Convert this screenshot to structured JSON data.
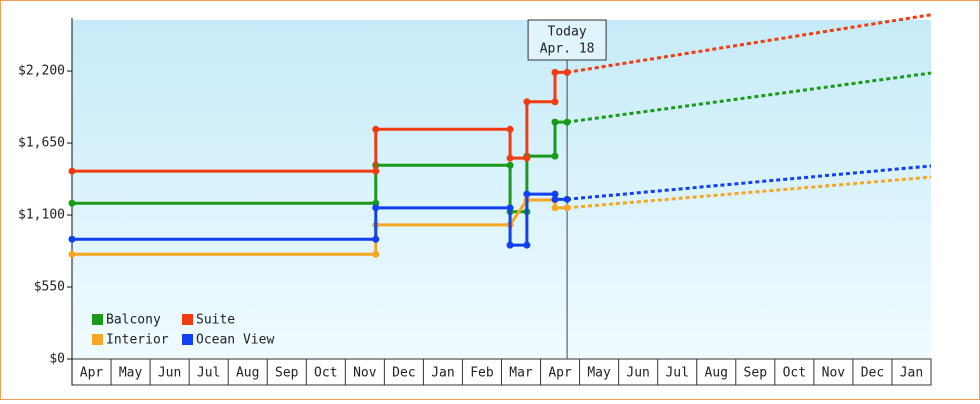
{
  "chart_data": {
    "type": "line",
    "xlim": [
      0,
      22
    ],
    "xticks": [
      {
        "value": 0.5,
        "label": "Apr"
      },
      {
        "value": 1.5,
        "label": "May"
      },
      {
        "value": 2.5,
        "label": "Jun"
      },
      {
        "value": 3.5,
        "label": "Jul"
      },
      {
        "value": 4.5,
        "label": "Aug"
      },
      {
        "value": 5.5,
        "label": "Sep"
      },
      {
        "value": 6.5,
        "label": "Oct"
      },
      {
        "value": 7.5,
        "label": "Nov"
      },
      {
        "value": 8.5,
        "label": "Dec"
      },
      {
        "value": 9.5,
        "label": "Jan"
      },
      {
        "value": 10.5,
        "label": "Feb"
      },
      {
        "value": 11.5,
        "label": "Mar"
      },
      {
        "value": 12.5,
        "label": "Apr"
      },
      {
        "value": 13.5,
        "label": "May"
      },
      {
        "value": 14.5,
        "label": "Jun"
      },
      {
        "value": 15.5,
        "label": "Jul"
      },
      {
        "value": 16.5,
        "label": "Aug"
      },
      {
        "value": 17.5,
        "label": "Sep"
      },
      {
        "value": 18.5,
        "label": "Oct"
      },
      {
        "value": 19.5,
        "label": "Nov"
      },
      {
        "value": 20.5,
        "label": "Dec"
      },
      {
        "value": 21.5,
        "label": "Jan"
      }
    ],
    "ylim": [
      0,
      2590
    ],
    "yticks": [
      {
        "value": 0,
        "label": "$0"
      },
      {
        "value": 550,
        "label": "$550"
      },
      {
        "value": 1100,
        "label": "$1,100"
      },
      {
        "value": 1650,
        "label": "$1,650"
      },
      {
        "value": 2200,
        "label": "$2,200"
      }
    ],
    "today": {
      "x": 12.68,
      "label": [
        "Today",
        "Apr. 18"
      ]
    },
    "series": [
      {
        "name": "Balcony",
        "color": "#1a9a1a",
        "x": [
          0,
          7.78,
          7.78,
          11.22,
          11.22,
          11.65,
          11.65,
          12.37,
          12.37,
          12.68
        ],
        "values": [
          1190,
          1190,
          1480,
          1480,
          1125,
          1125,
          1550,
          1550,
          1810,
          1810
        ],
        "projected_x": [
          12.68,
          22
        ],
        "projected_values": [
          1810,
          2185
        ]
      },
      {
        "name": "Suite",
        "color": "#f03c10",
        "x": [
          0,
          7.78,
          7.78,
          11.22,
          11.22,
          11.65,
          11.65,
          12.37,
          12.37,
          12.68
        ],
        "values": [
          1435,
          1435,
          1755,
          1755,
          1535,
          1535,
          1965,
          1965,
          2190,
          2190
        ],
        "projected_x": [
          12.68,
          22
        ],
        "projected_values": [
          2190,
          2630
        ]
      },
      {
        "name": "Interior",
        "color": "#f5a623",
        "x": [
          0,
          7.78,
          7.78,
          11.22,
          11.65,
          12.37,
          12.37,
          12.68
        ],
        "values": [
          800,
          800,
          1025,
          1025,
          1215,
          1215,
          1155,
          1155
        ],
        "projected_x": [
          12.68,
          22
        ],
        "projected_values": [
          1155,
          1390
        ]
      },
      {
        "name": "Ocean View",
        "color": "#1040f0",
        "x": [
          0,
          7.78,
          7.78,
          11.22,
          11.22,
          11.65,
          11.65,
          12.37,
          12.37,
          12.68
        ],
        "values": [
          915,
          915,
          1155,
          1155,
          870,
          870,
          1260,
          1260,
          1220,
          1220
        ],
        "projected_x": [
          12.68,
          22
        ],
        "projected_values": [
          1220,
          1475
        ]
      }
    ]
  }
}
